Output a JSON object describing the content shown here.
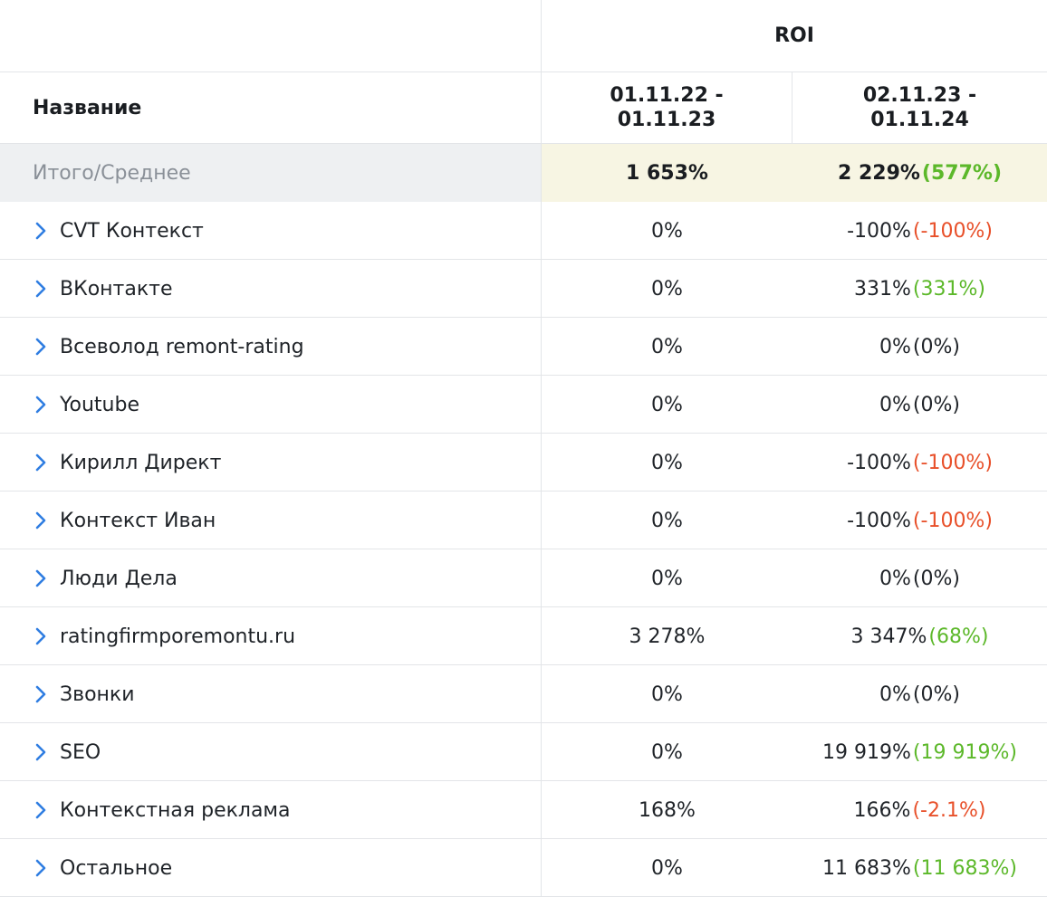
{
  "header": {
    "name_col": "Название",
    "group": "ROI",
    "periods": [
      "01.11.22 - 01.11.23",
      "02.11.23 - 01.11.24"
    ],
    "period_lines": [
      [
        "01.11.22 -",
        "01.11.23"
      ],
      [
        "02.11.23 -",
        "01.11.24"
      ]
    ]
  },
  "total": {
    "label": "Итого/Среднее",
    "p1": "1 653%",
    "p2": "2 229%",
    "diff": "(577%)",
    "diff_sign": "pos"
  },
  "rows": [
    {
      "name": "CVT Контекст",
      "p1": "0%",
      "p2": "-100%",
      "diff": "(-100%)",
      "sign": "neg"
    },
    {
      "name": "ВКонтакте",
      "p1": "0%",
      "p2": "331%",
      "diff": "(331%)",
      "sign": "pos"
    },
    {
      "name": "Всеволод remont-rating",
      "p1": "0%",
      "p2": "0%",
      "diff": "(0%)",
      "sign": "zero"
    },
    {
      "name": "Youtube",
      "p1": "0%",
      "p2": "0%",
      "diff": "(0%)",
      "sign": "zero"
    },
    {
      "name": "Кирилл Директ",
      "p1": "0%",
      "p2": "-100%",
      "diff": "(-100%)",
      "sign": "neg"
    },
    {
      "name": "Контекст Иван",
      "p1": "0%",
      "p2": "-100%",
      "diff": "(-100%)",
      "sign": "neg"
    },
    {
      "name": "Люди Дела",
      "p1": "0%",
      "p2": "0%",
      "diff": "(0%)",
      "sign": "zero"
    },
    {
      "name": "ratingfirmporemontu.ru",
      "p1": "3 278%",
      "p2": "3 347%",
      "diff": "(68%)",
      "sign": "pos"
    },
    {
      "name": "Звонки",
      "p1": "0%",
      "p2": "0%",
      "diff": "(0%)",
      "sign": "zero"
    },
    {
      "name": "SEO",
      "p1": "0%",
      "p2": "19 919%",
      "diff": "(19 919%)",
      "sign": "pos"
    },
    {
      "name": "Контекстная реклама",
      "p1": "168%",
      "p2": "166%",
      "diff": "(-2.1%)",
      "sign": "neg"
    },
    {
      "name": "Остальное",
      "p1": "0%",
      "p2": "11 683%",
      "diff": "(11 683%)",
      "sign": "pos"
    }
  ],
  "icons": {
    "expand": "chevron-right-icon"
  },
  "colors": {
    "positive": "#5cb82a",
    "negative": "#e8502a",
    "chevron": "#2f7de1",
    "total_bg": "#f7f5e3"
  }
}
